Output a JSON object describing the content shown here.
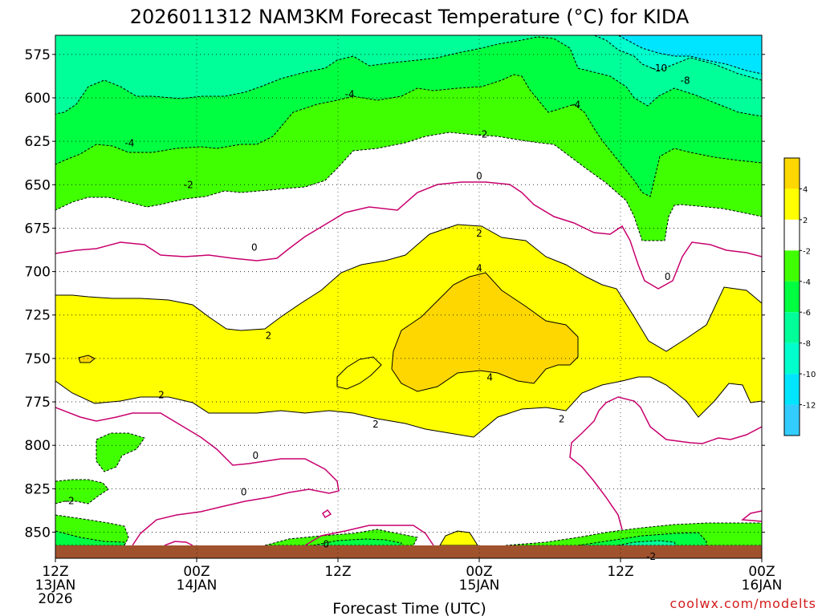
{
  "chart_data": {
    "type": "heatmap",
    "title": "2026011312 NAM3KM Forecast Temperature (°C) for KIDA",
    "xlabel": "Forecast Time (UTC)",
    "ylabel": "",
    "credit": "coolwx.com/modelts",
    "y_axis": {
      "range": [
        564,
        865
      ],
      "ticks": [
        575,
        600,
        625,
        650,
        675,
        700,
        725,
        750,
        775,
        800,
        825,
        850
      ]
    },
    "x_axis": {
      "range": [
        0,
        60
      ],
      "ticks": [
        {
          "hour": 0,
          "lines": [
            "12Z",
            "13JAN",
            "2026"
          ]
        },
        {
          "hour": 12,
          "lines": [
            "00Z",
            "14JAN"
          ]
        },
        {
          "hour": 24,
          "lines": [
            "12Z"
          ]
        },
        {
          "hour": 36,
          "lines": [
            "00Z",
            "15JAN"
          ]
        },
        {
          "hour": 48,
          "lines": [
            "12Z"
          ]
        },
        {
          "hour": 60,
          "lines": [
            "00Z",
            "16JAN"
          ]
        }
      ]
    },
    "colorbar": {
      "levels": [
        4,
        2,
        -2,
        -4,
        -6,
        -8,
        -10,
        -12
      ],
      "colors": [
        "#ffd700",
        "#ffff00",
        "#ffffff",
        "#40ff00",
        "#00ff40",
        "#00ff99",
        "#00ffcc",
        "#00e5ff",
        "#33ccff"
      ]
    },
    "contour_labels": [
      {
        "text": "-10",
        "hour": 51.3,
        "level": 583
      },
      {
        "text": "-8",
        "hour": 53.5,
        "level": 590
      },
      {
        "text": "-4",
        "hour": 25.0,
        "level": 598
      },
      {
        "text": "-4",
        "hour": 44.2,
        "level": 604
      },
      {
        "text": "-4",
        "hour": 6.3,
        "level": 626
      },
      {
        "text": "-2",
        "hour": 36.3,
        "level": 621
      },
      {
        "text": "-2",
        "hour": 11.3,
        "level": 650
      },
      {
        "text": "-2",
        "hour": 1.2,
        "level": 832
      },
      {
        "text": "-2",
        "hour": 50.6,
        "level": 864
      },
      {
        "text": "0",
        "hour": 36.0,
        "level": 645
      },
      {
        "text": "0",
        "hour": 16.9,
        "level": 686
      },
      {
        "text": "0",
        "hour": 52.0,
        "level": 703
      },
      {
        "text": "0",
        "hour": 17.0,
        "level": 806
      },
      {
        "text": "0",
        "hour": 16.0,
        "level": 827
      },
      {
        "text": "0",
        "hour": 23.0,
        "level": 857
      },
      {
        "text": "2",
        "hour": 36.0,
        "level": 678
      },
      {
        "text": "2",
        "hour": 18.1,
        "level": 737
      },
      {
        "text": "2",
        "hour": 9.0,
        "level": 771
      },
      {
        "text": "2",
        "hour": 27.2,
        "level": 788
      },
      {
        "text": "2",
        "hour": 43.0,
        "level": 785
      },
      {
        "text": "4",
        "hour": 36.0,
        "level": 698
      },
      {
        "text": "4",
        "hour": 36.9,
        "level": 761
      }
    ]
  }
}
